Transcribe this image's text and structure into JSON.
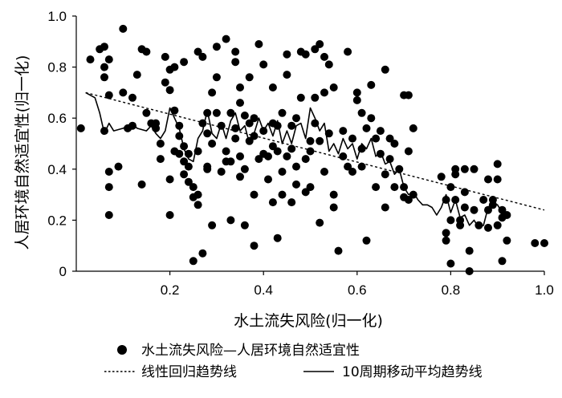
{
  "chart_data": {
    "type": "scatter",
    "xlabel": "水土流失风险(归一化)",
    "ylabel": "人居环境自然适宜性(归一化)",
    "xlim": [
      0,
      1.0
    ],
    "ylim": [
      0,
      1.0
    ],
    "xticks": [
      "0.2",
      "0.4",
      "0.6",
      "0.8",
      "1.0"
    ],
    "yticks": [
      "0",
      "0.2",
      "0.4",
      "0.6",
      "0.8",
      "1.0"
    ],
    "grid": false,
    "legend_position": "bottom",
    "series": [
      {
        "name": "水土流失风险—人居环境自然适宜性",
        "kind": "points",
        "color": "#000000",
        "points": [
          [
            0.01,
            0.56
          ],
          [
            0.03,
            0.83
          ],
          [
            0.05,
            0.87
          ],
          [
            0.06,
            0.88
          ],
          [
            0.06,
            0.8
          ],
          [
            0.06,
            0.76
          ],
          [
            0.07,
            0.83
          ],
          [
            0.07,
            0.69
          ],
          [
            0.06,
            0.55
          ],
          [
            0.07,
            0.39
          ],
          [
            0.07,
            0.33
          ],
          [
            0.07,
            0.22
          ],
          [
            0.09,
            0.41
          ],
          [
            0.1,
            0.95
          ],
          [
            0.1,
            0.7
          ],
          [
            0.11,
            0.56
          ],
          [
            0.12,
            0.57
          ],
          [
            0.12,
            0.68
          ],
          [
            0.13,
            0.77
          ],
          [
            0.14,
            0.87
          ],
          [
            0.14,
            0.34
          ],
          [
            0.15,
            0.86
          ],
          [
            0.15,
            0.62
          ],
          [
            0.16,
            0.58
          ],
          [
            0.17,
            0.58
          ],
          [
            0.17,
            0.56
          ],
          [
            0.18,
            0.5
          ],
          [
            0.18,
            0.44
          ],
          [
            0.19,
            0.84
          ],
          [
            0.19,
            0.74
          ],
          [
            0.2,
            0.79
          ],
          [
            0.2,
            0.71
          ],
          [
            0.2,
            0.36
          ],
          [
            0.2,
            0.22
          ],
          [
            0.21,
            0.47
          ],
          [
            0.21,
            0.63
          ],
          [
            0.21,
            0.8
          ],
          [
            0.22,
            0.57
          ],
          [
            0.22,
            0.53
          ],
          [
            0.22,
            0.46
          ],
          [
            0.23,
            0.49
          ],
          [
            0.23,
            0.82
          ],
          [
            0.23,
            0.43
          ],
          [
            0.23,
            0.38
          ],
          [
            0.24,
            0.46
          ],
          [
            0.24,
            0.41
          ],
          [
            0.24,
            0.35
          ],
          [
            0.25,
            0.33
          ],
          [
            0.25,
            0.29
          ],
          [
            0.25,
            0.04
          ],
          [
            0.26,
            0.86
          ],
          [
            0.26,
            0.47
          ],
          [
            0.26,
            0.3
          ],
          [
            0.26,
            0.26
          ],
          [
            0.27,
            0.58
          ],
          [
            0.27,
            0.84
          ],
          [
            0.27,
            0.07
          ],
          [
            0.28,
            0.41
          ],
          [
            0.28,
            0.4
          ],
          [
            0.28,
            0.62
          ],
          [
            0.28,
            0.54
          ],
          [
            0.29,
            0.18
          ],
          [
            0.29,
            0.5
          ],
          [
            0.29,
            0.7
          ],
          [
            0.3,
            0.88
          ],
          [
            0.3,
            0.76
          ],
          [
            0.3,
            0.62
          ],
          [
            0.31,
            0.57
          ],
          [
            0.31,
            0.39
          ],
          [
            0.32,
            0.91
          ],
          [
            0.32,
            0.43
          ],
          [
            0.32,
            0.47
          ],
          [
            0.33,
            0.62
          ],
          [
            0.33,
            0.43
          ],
          [
            0.33,
            0.2
          ],
          [
            0.34,
            0.86
          ],
          [
            0.34,
            0.82
          ],
          [
            0.34,
            0.52
          ],
          [
            0.34,
            0.56
          ],
          [
            0.35,
            0.66
          ],
          [
            0.35,
            0.72
          ],
          [
            0.35,
            0.45
          ],
          [
            0.35,
            0.37
          ],
          [
            0.36,
            0.4
          ],
          [
            0.36,
            0.61
          ],
          [
            0.36,
            0.18
          ],
          [
            0.37,
            0.76
          ],
          [
            0.37,
            0.51
          ],
          [
            0.37,
            0.58
          ],
          [
            0.38,
            0.53
          ],
          [
            0.38,
            0.3
          ],
          [
            0.38,
            0.1
          ],
          [
            0.38,
            0.6
          ],
          [
            0.39,
            0.89
          ],
          [
            0.39,
            0.44
          ],
          [
            0.4,
            0.46
          ],
          [
            0.4,
            0.55
          ],
          [
            0.4,
            0.81
          ],
          [
            0.41,
            0.36
          ],
          [
            0.41,
            0.45
          ],
          [
            0.42,
            0.49
          ],
          [
            0.42,
            0.72
          ],
          [
            0.42,
            0.58
          ],
          [
            0.42,
            0.27
          ],
          [
            0.43,
            0.13
          ],
          [
            0.43,
            0.47
          ],
          [
            0.43,
            0.57
          ],
          [
            0.44,
            0.3
          ],
          [
            0.44,
            0.62
          ],
          [
            0.44,
            0.39
          ],
          [
            0.45,
            0.45
          ],
          [
            0.45,
            0.77
          ],
          [
            0.45,
            0.85
          ],
          [
            0.46,
            0.57
          ],
          [
            0.46,
            0.48
          ],
          [
            0.46,
            0.27
          ],
          [
            0.47,
            0.6
          ],
          [
            0.47,
            0.41
          ],
          [
            0.47,
            0.34
          ],
          [
            0.48,
            0.68
          ],
          [
            0.48,
            0.86
          ],
          [
            0.49,
            0.31
          ],
          [
            0.49,
            0.44
          ],
          [
            0.49,
            0.85
          ],
          [
            0.5,
            0.51
          ],
          [
            0.5,
            0.47
          ],
          [
            0.5,
            0.33
          ],
          [
            0.51,
            0.87
          ],
          [
            0.51,
            0.68
          ],
          [
            0.51,
            0.58
          ],
          [
            0.52,
            0.89
          ],
          [
            0.52,
            0.51
          ],
          [
            0.52,
            0.19
          ],
          [
            0.53,
            0.7
          ],
          [
            0.53,
            0.84
          ],
          [
            0.53,
            0.39
          ],
          [
            0.54,
            0.81
          ],
          [
            0.54,
            0.54
          ],
          [
            0.55,
            0.72
          ],
          [
            0.55,
            0.3
          ],
          [
            0.55,
            0.25
          ],
          [
            0.56,
            0.08
          ],
          [
            0.57,
            0.45
          ],
          [
            0.57,
            0.55
          ],
          [
            0.58,
            0.41
          ],
          [
            0.58,
            0.86
          ],
          [
            0.59,
            0.39
          ],
          [
            0.59,
            0.52
          ],
          [
            0.6,
            0.7
          ],
          [
            0.6,
            0.67
          ],
          [
            0.61,
            0.41
          ],
          [
            0.61,
            0.62
          ],
          [
            0.61,
            0.48
          ],
          [
            0.62,
            0.56
          ],
          [
            0.62,
            0.12
          ],
          [
            0.63,
            0.73
          ],
          [
            0.63,
            0.6
          ],
          [
            0.64,
            0.52
          ],
          [
            0.64,
            0.33
          ],
          [
            0.65,
            0.55
          ],
          [
            0.65,
            0.46
          ],
          [
            0.66,
            0.79
          ],
          [
            0.66,
            0.25
          ],
          [
            0.66,
            0.38
          ],
          [
            0.67,
            0.44
          ],
          [
            0.67,
            0.52
          ],
          [
            0.68,
            0.5
          ],
          [
            0.68,
            0.33
          ],
          [
            0.69,
            0.4
          ],
          [
            0.7,
            0.69
          ],
          [
            0.7,
            0.33
          ],
          [
            0.7,
            0.29
          ],
          [
            0.71,
            0.47
          ],
          [
            0.71,
            0.69
          ],
          [
            0.71,
            0.28
          ],
          [
            0.72,
            0.56
          ],
          [
            0.72,
            0.3
          ],
          [
            0.78,
            0.37
          ],
          [
            0.79,
            0.28
          ],
          [
            0.79,
            0.15
          ],
          [
            0.79,
            0.12
          ],
          [
            0.8,
            0.33
          ],
          [
            0.8,
            0.2
          ],
          [
            0.8,
            0.03
          ],
          [
            0.81,
            0.4
          ],
          [
            0.81,
            0.38
          ],
          [
            0.81,
            0.28
          ],
          [
            0.82,
            0.2
          ],
          [
            0.82,
            0.18
          ],
          [
            0.83,
            0.4
          ],
          [
            0.83,
            0.31
          ],
          [
            0.83,
            0.25
          ],
          [
            0.84,
            0.0
          ],
          [
            0.84,
            0.08
          ],
          [
            0.85,
            0.4
          ],
          [
            0.85,
            0.24
          ],
          [
            0.86,
            0.18
          ],
          [
            0.87,
            0.28
          ],
          [
            0.88,
            0.17
          ],
          [
            0.88,
            0.36
          ],
          [
            0.88,
            0.24
          ],
          [
            0.89,
            0.28
          ],
          [
            0.89,
            0.26
          ],
          [
            0.9,
            0.36
          ],
          [
            0.9,
            0.18
          ],
          [
            0.9,
            0.42
          ],
          [
            0.91,
            0.24
          ],
          [
            0.91,
            0.21
          ],
          [
            0.91,
            0.04
          ],
          [
            0.92,
            0.22
          ],
          [
            0.92,
            0.12
          ],
          [
            0.98,
            0.11
          ],
          [
            1.0,
            0.11
          ]
        ]
      },
      {
        "name": "线性回归趋势线",
        "kind": "dashed-line",
        "color": "#000000",
        "points": [
          [
            0.02,
            0.7
          ],
          [
            1.0,
            0.24
          ]
        ]
      },
      {
        "name": "10周期移动平均趋势线",
        "kind": "line",
        "color": "#000000",
        "points": [
          [
            0.02,
            0.7
          ],
          [
            0.04,
            0.68
          ],
          [
            0.05,
            0.62
          ],
          [
            0.06,
            0.54
          ],
          [
            0.07,
            0.58
          ],
          [
            0.08,
            0.55
          ],
          [
            0.1,
            0.56
          ],
          [
            0.12,
            0.58
          ],
          [
            0.13,
            0.56
          ],
          [
            0.15,
            0.55
          ],
          [
            0.16,
            0.57
          ],
          [
            0.17,
            0.54
          ],
          [
            0.18,
            0.52
          ],
          [
            0.19,
            0.55
          ],
          [
            0.2,
            0.64
          ],
          [
            0.21,
            0.6
          ],
          [
            0.22,
            0.56
          ],
          [
            0.23,
            0.48
          ],
          [
            0.24,
            0.44
          ],
          [
            0.25,
            0.43
          ],
          [
            0.26,
            0.52
          ],
          [
            0.27,
            0.55
          ],
          [
            0.28,
            0.63
          ],
          [
            0.29,
            0.54
          ],
          [
            0.3,
            0.52
          ],
          [
            0.31,
            0.58
          ],
          [
            0.32,
            0.52
          ],
          [
            0.33,
            0.59
          ],
          [
            0.34,
            0.62
          ],
          [
            0.35,
            0.55
          ],
          [
            0.36,
            0.57
          ],
          [
            0.37,
            0.5
          ],
          [
            0.38,
            0.54
          ],
          [
            0.39,
            0.6
          ],
          [
            0.4,
            0.55
          ],
          [
            0.41,
            0.58
          ],
          [
            0.42,
            0.53
          ],
          [
            0.43,
            0.59
          ],
          [
            0.44,
            0.5
          ],
          [
            0.45,
            0.55
          ],
          [
            0.46,
            0.5
          ],
          [
            0.47,
            0.57
          ],
          [
            0.48,
            0.58
          ],
          [
            0.49,
            0.52
          ],
          [
            0.5,
            0.64
          ],
          [
            0.51,
            0.6
          ],
          [
            0.52,
            0.55
          ],
          [
            0.53,
            0.58
          ],
          [
            0.54,
            0.47
          ],
          [
            0.55,
            0.5
          ],
          [
            0.56,
            0.46
          ],
          [
            0.57,
            0.52
          ],
          [
            0.58,
            0.48
          ],
          [
            0.59,
            0.5
          ],
          [
            0.6,
            0.44
          ],
          [
            0.61,
            0.5
          ],
          [
            0.62,
            0.48
          ],
          [
            0.63,
            0.52
          ],
          [
            0.64,
            0.45
          ],
          [
            0.65,
            0.47
          ],
          [
            0.66,
            0.42
          ],
          [
            0.67,
            0.43
          ],
          [
            0.68,
            0.38
          ],
          [
            0.69,
            0.4
          ],
          [
            0.7,
            0.33
          ],
          [
            0.71,
            0.3
          ],
          [
            0.72,
            0.31
          ],
          [
            0.73,
            0.28
          ],
          [
            0.74,
            0.26
          ],
          [
            0.75,
            0.26
          ],
          [
            0.76,
            0.25
          ],
          [
            0.77,
            0.22
          ],
          [
            0.78,
            0.25
          ],
          [
            0.79,
            0.3
          ],
          [
            0.8,
            0.23
          ],
          [
            0.81,
            0.28
          ],
          [
            0.82,
            0.21
          ],
          [
            0.83,
            0.22
          ],
          [
            0.84,
            0.18
          ],
          [
            0.85,
            0.2
          ],
          [
            0.86,
            0.17
          ],
          [
            0.87,
            0.18
          ],
          [
            0.88,
            0.25
          ],
          [
            0.89,
            0.27
          ],
          [
            0.9,
            0.26
          ],
          [
            0.91,
            0.23
          ]
        ]
      }
    ]
  }
}
